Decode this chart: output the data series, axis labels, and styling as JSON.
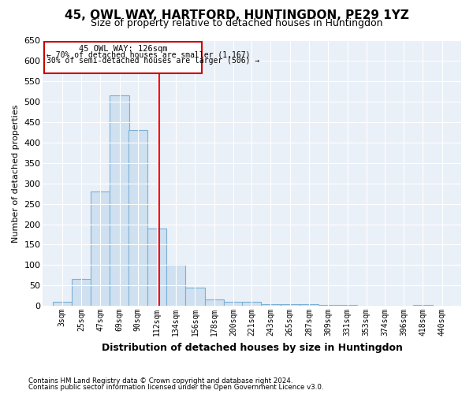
{
  "title": "45, OWL WAY, HARTFORD, HUNTINGDON, PE29 1YZ",
  "subtitle": "Size of property relative to detached houses in Huntingdon",
  "xlabel": "Distribution of detached houses by size in Huntingdon",
  "ylabel": "Number of detached properties",
  "footnote1": "Contains HM Land Registry data © Crown copyright and database right 2024.",
  "footnote2": "Contains public sector information licensed under the Open Government Licence v3.0.",
  "annotation_line1": "45 OWL WAY: 126sqm",
  "annotation_line2": "← 70% of detached houses are smaller (1,167)",
  "annotation_line3": "30% of semi-detached houses are larger (506) →",
  "property_size": 126,
  "bar_color": "#cfe0f0",
  "bar_edge_color": "#7bafd4",
  "red_line_x": 126,
  "categories": [
    "3sqm",
    "25sqm",
    "47sqm",
    "69sqm",
    "90sqm",
    "112sqm",
    "134sqm",
    "156sqm",
    "178sqm",
    "200sqm",
    "221sqm",
    "243sqm",
    "265sqm",
    "287sqm",
    "309sqm",
    "331sqm",
    "353sqm",
    "374sqm",
    "396sqm",
    "418sqm",
    "440sqm"
  ],
  "bin_lefts": [
    3,
    25,
    47,
    69,
    90,
    112,
    134,
    156,
    178,
    200,
    221,
    243,
    265,
    287,
    309,
    331,
    353,
    374,
    396,
    418,
    440
  ],
  "bin_width": 22,
  "values": [
    10,
    65,
    280,
    515,
    430,
    190,
    100,
    45,
    15,
    10,
    10,
    5,
    5,
    4,
    3,
    2,
    1,
    0,
    0,
    2,
    1
  ],
  "ylim": [
    0,
    650
  ],
  "yticks": [
    0,
    50,
    100,
    150,
    200,
    250,
    300,
    350,
    400,
    450,
    500,
    550,
    600,
    650
  ],
  "fig_bg_color": "#ffffff",
  "plot_bg_color": "#eaf0f8",
  "grid_color": "#ffffff",
  "annotation_box_color": "#ffffff",
  "annotation_box_edge": "#cc0000",
  "title_fontsize": 11,
  "subtitle_fontsize": 9
}
